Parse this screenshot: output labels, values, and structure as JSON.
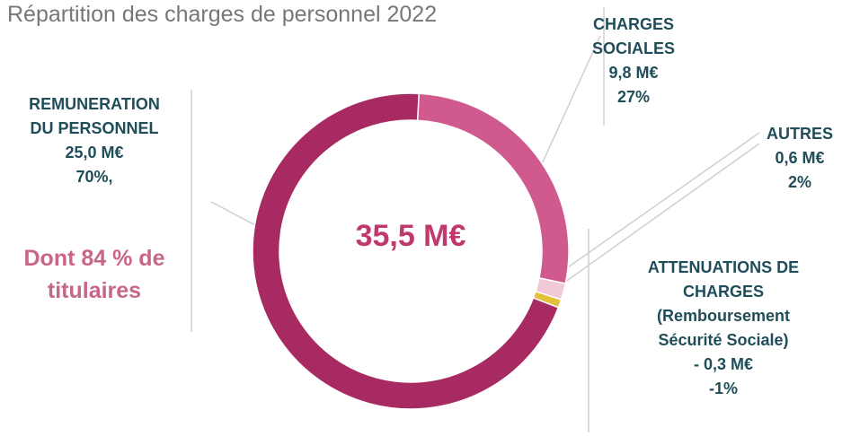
{
  "chart_data": {
    "type": "donut",
    "title": "Répartition des charges de personnel 2022",
    "center_label": "35,5 M€",
    "note": "Dont 84 % de\ntitulaires",
    "categories": [
      "CHARGES\nSOCIALES",
      "AUTRES",
      "ATTENUATIONS DE\nCHARGES\n(Remboursement\nSécurité Sociale)",
      "REMUNERATION\nDU PERSONNEL"
    ],
    "values": [
      9.8,
      0.6,
      -0.3,
      25.0
    ],
    "value_labels": [
      "9,8 M€",
      "0,6 M€",
      "- 0,3 M€",
      "25,0 M€"
    ],
    "percents": [
      27,
      2,
      -1,
      70
    ],
    "percent_labels": [
      "27%",
      "2%",
      "-1%",
      "70%,"
    ],
    "colors": [
      "#d05a8e",
      "#f2c9d6",
      "#e2c13a",
      "#a82a62"
    ]
  }
}
